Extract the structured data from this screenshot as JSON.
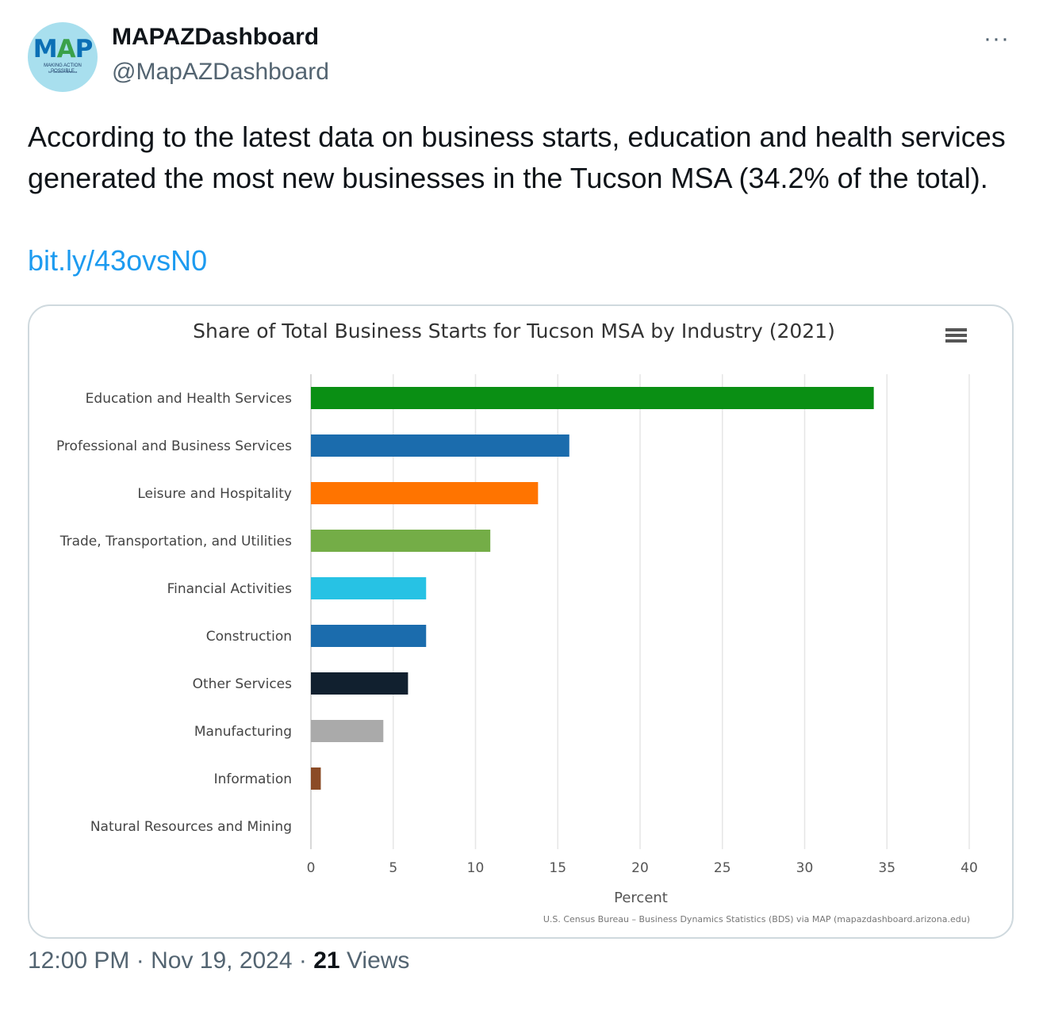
{
  "author": {
    "display_name": "MAPAZDashboard",
    "handle": "@MapAZDashboard",
    "avatar_logo": {
      "m": "M",
      "a": "A",
      "p": "P",
      "tagline": "MAKING ACTION POSSIBLE",
      "subtagline": "for Southern Arizona"
    }
  },
  "more_label": "···",
  "tweet": {
    "text": "According to the latest data on business starts, education and health services generated the most new businesses in the Tucson MSA (34.2% of the total).",
    "link": "bit.ly/43ovsN0"
  },
  "meta": {
    "time": "12:00 PM",
    "sep1": " · ",
    "date": "Nov 19, 2024",
    "sep2": " · ",
    "views_count": "21",
    "views_label": " Views"
  },
  "menu_icon": "hamburger-menu-icon",
  "chart_data": {
    "type": "bar",
    "orientation": "horizontal",
    "title": "Share of Total Business Starts for Tucson MSA by Industry (2021)",
    "xlabel": "Percent",
    "ylabel": "",
    "credits": "U.S. Census Bureau – Business Dynamics Statistics (BDS) via MAP (mapazdashboard.arizona.edu)",
    "xlim": [
      0,
      40
    ],
    "xticks": [
      0,
      5,
      10,
      15,
      20,
      25,
      30,
      35,
      40
    ],
    "grid": "vertical",
    "categories": [
      "Education and Health Services",
      "Professional and Business Services",
      "Leisure and Hospitality",
      "Trade, Transportation, and Utilities",
      "Financial Activities",
      "Construction",
      "Other Services",
      "Manufacturing",
      "Information",
      "Natural Resources and Mining"
    ],
    "values": [
      34.2,
      15.7,
      13.8,
      10.9,
      7.0,
      7.0,
      5.9,
      4.4,
      0.6,
      0.0
    ],
    "colors": [
      "#0a8f14",
      "#1b6cad",
      "#ff7400",
      "#74ad47",
      "#27c2e4",
      "#1b6cad",
      "#11202f",
      "#aaaaaa",
      "#8b4b26",
      "#cccccc"
    ]
  }
}
